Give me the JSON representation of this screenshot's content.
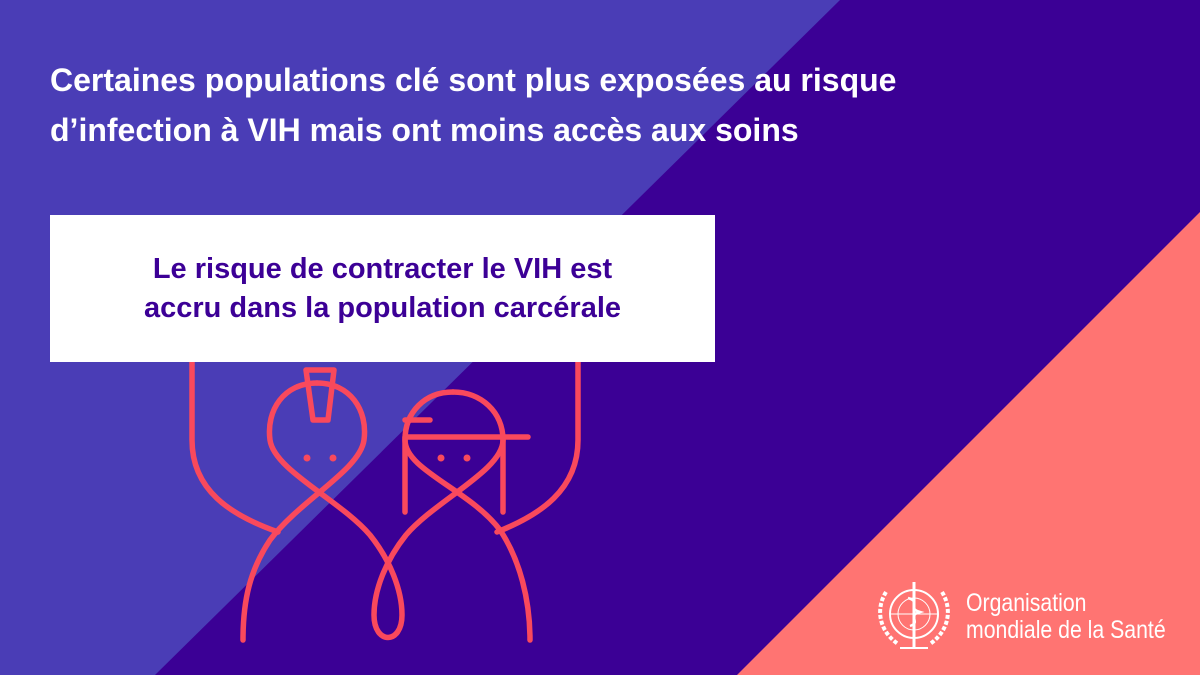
{
  "colors": {
    "left_bg": "#4a3db6",
    "middle_bg": "#3b0095",
    "corner_bg": "#ff7472",
    "figure_stroke": "#f9495c",
    "sign_text": "#3c0096"
  },
  "headline": {
    "line1": "Certaines populations clé sont plus exposées au risque",
    "line2": "d’infection à VIH mais ont moins accès aux soins"
  },
  "sign": {
    "line1": "Le risque de contracter le VIH est",
    "line2": "accru dans la population carcérale"
  },
  "logo": {
    "line1": "Organisation",
    "line2": "mondiale de la Santé",
    "icon": "who-emblem-icon"
  }
}
